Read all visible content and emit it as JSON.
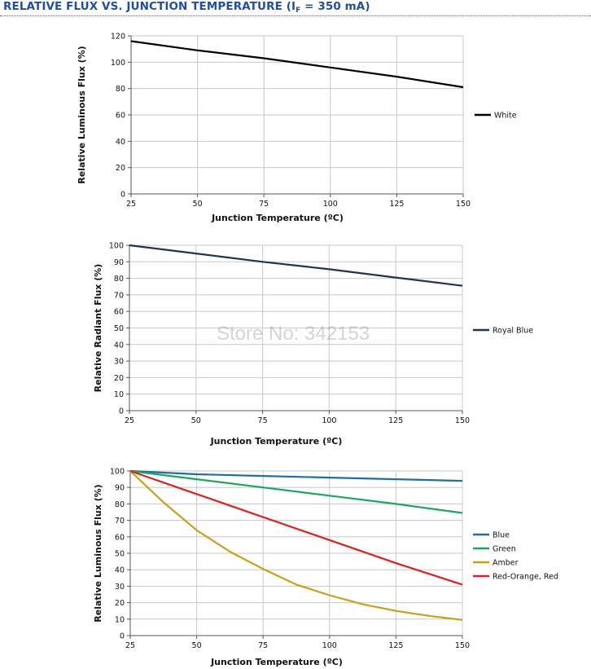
{
  "header": {
    "title_prefix": "RELATIVE FLUX VS. JUNCTION TEMPERATURE (I",
    "title_sub": "F",
    "title_suffix": " = 350 mA)"
  },
  "watermark": "Store No: 342153",
  "chart_data": [
    {
      "type": "line",
      "xlabel": "Junction Temperature (ºC)",
      "ylabel": "Relative Luminous Flux (%)",
      "xlim": [
        25,
        150
      ],
      "ylim": [
        0,
        120
      ],
      "xticks": [
        25,
        50,
        75,
        100,
        125,
        150
      ],
      "yticks": [
        0,
        20,
        40,
        60,
        80,
        100,
        120
      ],
      "grid": true,
      "legend_position": "right",
      "series": [
        {
          "name": "White",
          "color": "#000000",
          "x": [
            25,
            50,
            75,
            100,
            125,
            150
          ],
          "y": [
            116,
            109,
            103,
            96,
            89,
            81
          ]
        }
      ]
    },
    {
      "type": "line",
      "xlabel": "Junction Temperature (ºC)",
      "ylabel": "Relative Radiant Flux (%)",
      "xlim": [
        25,
        150
      ],
      "ylim": [
        0,
        100
      ],
      "xticks": [
        25,
        50,
        75,
        100,
        125,
        150
      ],
      "yticks": [
        0,
        10,
        20,
        30,
        40,
        50,
        60,
        70,
        80,
        90,
        100
      ],
      "grid": true,
      "legend_position": "right",
      "series": [
        {
          "name": "Royal Blue",
          "color": "#1f3554",
          "x": [
            25,
            50,
            75,
            100,
            125,
            150
          ],
          "y": [
            100,
            95,
            90,
            85.5,
            80.5,
            75.5
          ]
        }
      ]
    },
    {
      "type": "line",
      "xlabel": "Junction Temperature (ºC)",
      "ylabel": "Relative Luminous Flux (%)",
      "xlim": [
        25,
        150
      ],
      "ylim": [
        0,
        100
      ],
      "xticks": [
        25,
        50,
        75,
        100,
        125,
        150
      ],
      "yticks": [
        0,
        10,
        20,
        30,
        40,
        50,
        60,
        70,
        80,
        90,
        100
      ],
      "grid": true,
      "legend_position": "right",
      "series": [
        {
          "name": "Blue",
          "color": "#1f6fa3",
          "x": [
            25,
            50,
            75,
            100,
            125,
            150
          ],
          "y": [
            100,
            98,
            97,
            96,
            95,
            94
          ]
        },
        {
          "name": "Green",
          "color": "#1aa85a",
          "x": [
            25,
            50,
            75,
            100,
            125,
            150
          ],
          "y": [
            100,
            95,
            90,
            85,
            80,
            74.5
          ]
        },
        {
          "name": "Amber",
          "color": "#caa012",
          "x": [
            25,
            37.5,
            50,
            62.5,
            75,
            87.5,
            100,
            112.5,
            125,
            137.5,
            150
          ],
          "y": [
            100,
            81,
            64,
            51,
            40.5,
            31,
            24.5,
            19,
            15,
            12,
            9.5
          ]
        },
        {
          "name": "Red-Orange, Red",
          "color": "#e0201e",
          "x": [
            25,
            50,
            75,
            100,
            125,
            150
          ],
          "y": [
            100,
            86,
            72,
            58,
            44,
            31
          ]
        }
      ]
    }
  ]
}
